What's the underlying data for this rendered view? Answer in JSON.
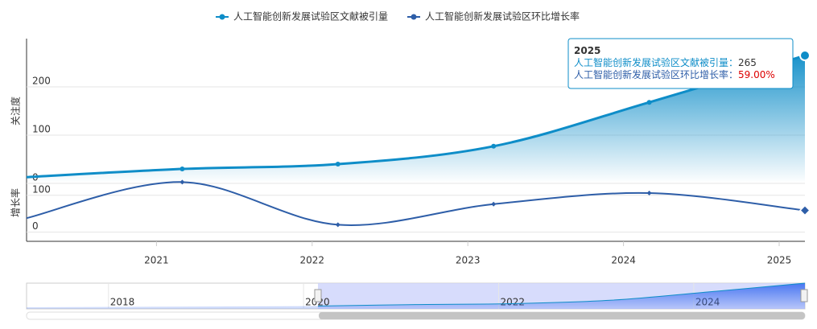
{
  "chart_data": {
    "type": "line",
    "legend_position": "top",
    "categories": [
      null,
      "2021",
      "2022",
      "2023",
      "2024",
      "2025"
    ],
    "series": [
      {
        "name": "人工智能创新发展试验区文献被引量",
        "color": "#0e8dc8",
        "values": [
          13,
          30,
          40,
          77,
          168,
          265
        ]
      },
      {
        "name": "人工智能创新发展试验区环比增长率",
        "color": "#2e5ea8",
        "axis": "y2",
        "values": [
          38,
          136,
          20,
          76,
          106,
          59
        ],
        "value_labels": [
          null,
          null,
          null,
          null,
          null,
          "59.00%"
        ]
      }
    ],
    "y_title": "关注度",
    "ylim": [
      0,
      300
    ],
    "yticks": [
      0,
      100,
      200
    ],
    "y2_title": "增长率",
    "y2lim": [
      -12,
      128
    ],
    "y2ticks": [
      0,
      100
    ],
    "grid": true,
    "tooltip_separator": "：",
    "navigator": {
      "xlim": [
        2017.16,
        2025.14
      ],
      "xticks": [
        2018,
        2020,
        2022,
        2024
      ]
    }
  }
}
